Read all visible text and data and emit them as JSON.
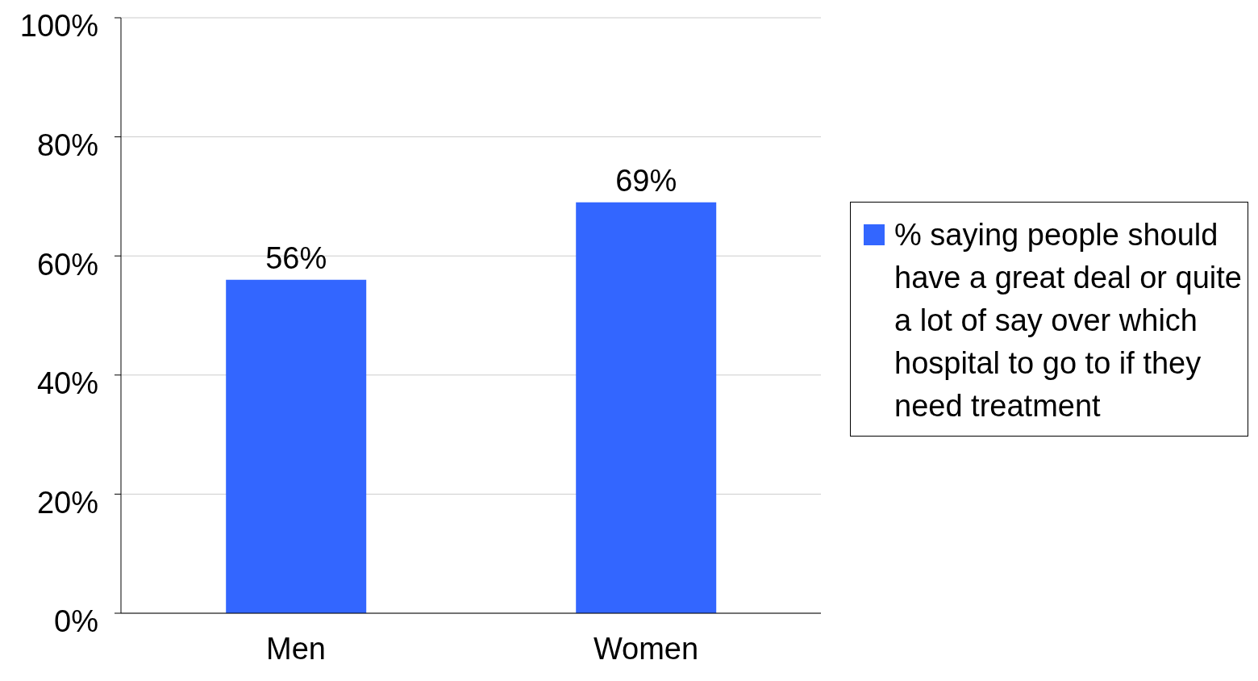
{
  "chart_data": {
    "type": "bar",
    "categories": [
      "Men",
      "Women"
    ],
    "series": [
      {
        "name": "% saying people should have a great deal or quite a lot of say over which hospital to go to if they need treatment",
        "color": "#3366ff",
        "values": [
          56,
          69
        ],
        "value_labels": [
          "56%",
          "69%"
        ]
      }
    ],
    "ylim": [
      0,
      100
    ],
    "yticks": [
      {
        "value": 0,
        "label": "0%"
      },
      {
        "value": 20,
        "label": "20%"
      },
      {
        "value": 40,
        "label": "40%"
      },
      {
        "value": 60,
        "label": "60%"
      },
      {
        "value": 80,
        "label": "80%"
      },
      {
        "value": 100,
        "label": "100%"
      }
    ],
    "grid": "y",
    "legend": "right"
  }
}
